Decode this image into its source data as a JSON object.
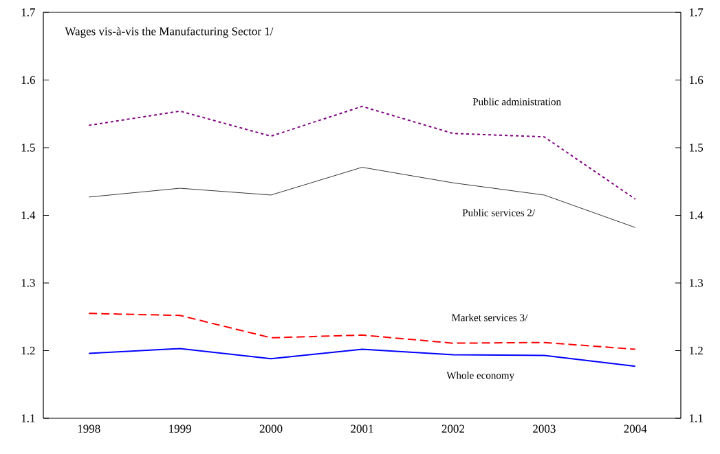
{
  "chart_data": {
    "type": "line",
    "title": "Wages vis-à-vis the Manufacturing Sector 1/",
    "categories": [
      "1998",
      "1999",
      "2000",
      "2001",
      "2002",
      "2003",
      "2004"
    ],
    "series": [
      {
        "name": "Public administration",
        "color": "#800080",
        "line_style": "dotted",
        "values": [
          1.533,
          1.554,
          1.517,
          1.561,
          1.521,
          1.516,
          1.424
        ]
      },
      {
        "name": "Public services 2/",
        "color": "#000000",
        "line_style": "solid",
        "values": [
          1.427,
          1.44,
          1.43,
          1.471,
          1.448,
          1.43,
          1.382
        ]
      },
      {
        "name": "Market services 3/",
        "color": "#ff0000",
        "line_style": "dashed",
        "values": [
          1.255,
          1.252,
          1.219,
          1.223,
          1.211,
          1.212,
          1.202
        ]
      },
      {
        "name": "Whole economy",
        "color": "#0000ff",
        "line_style": "solid",
        "values": [
          1.196,
          1.203,
          1.188,
          1.202,
          1.194,
          1.193,
          1.177
        ]
      }
    ],
    "ylim": [
      1.1,
      1.7
    ],
    "yticks": [
      1.1,
      1.2,
      1.3,
      1.4,
      1.5,
      1.6,
      1.7
    ],
    "y2lim": [
      1.1,
      1.7
    ],
    "y2ticks": [
      1.1,
      1.2,
      1.3,
      1.4,
      1.5,
      1.6,
      1.7
    ],
    "grid": false
  }
}
